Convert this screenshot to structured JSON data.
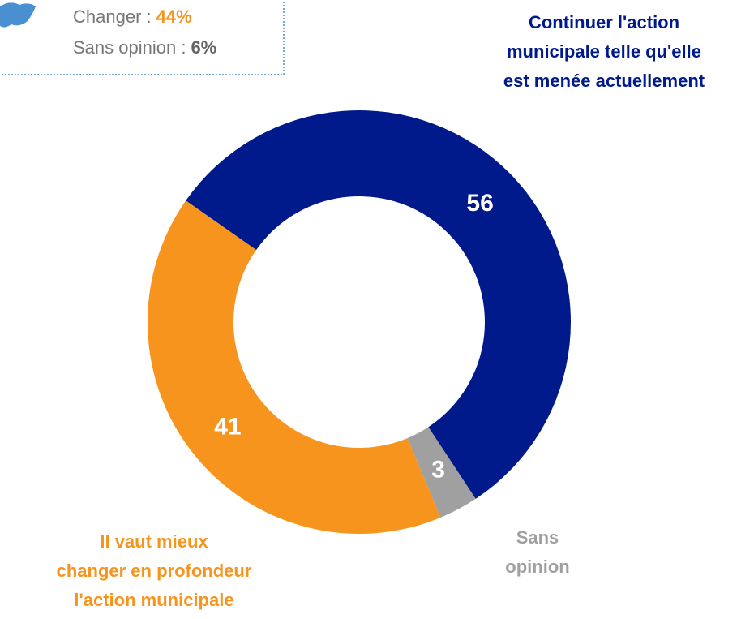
{
  "chart_data": {
    "type": "donut",
    "categories": [
      "Continuer l'action\nmunicipale telle qu'elle\nest menée actuellement",
      "Sans\nopinion",
      "Il vaut mieux\nchanger en profondeur\nl'action municipale"
    ],
    "values": [
      56,
      3,
      41
    ],
    "colors": [
      "#001a8c",
      "#a0a0a0",
      "#f7941d"
    ],
    "start_angle": 305,
    "inset": [
      {
        "label": "Changer :",
        "value": "44%"
      },
      {
        "label": "Sans opinion :",
        "value": "6%"
      }
    ]
  }
}
